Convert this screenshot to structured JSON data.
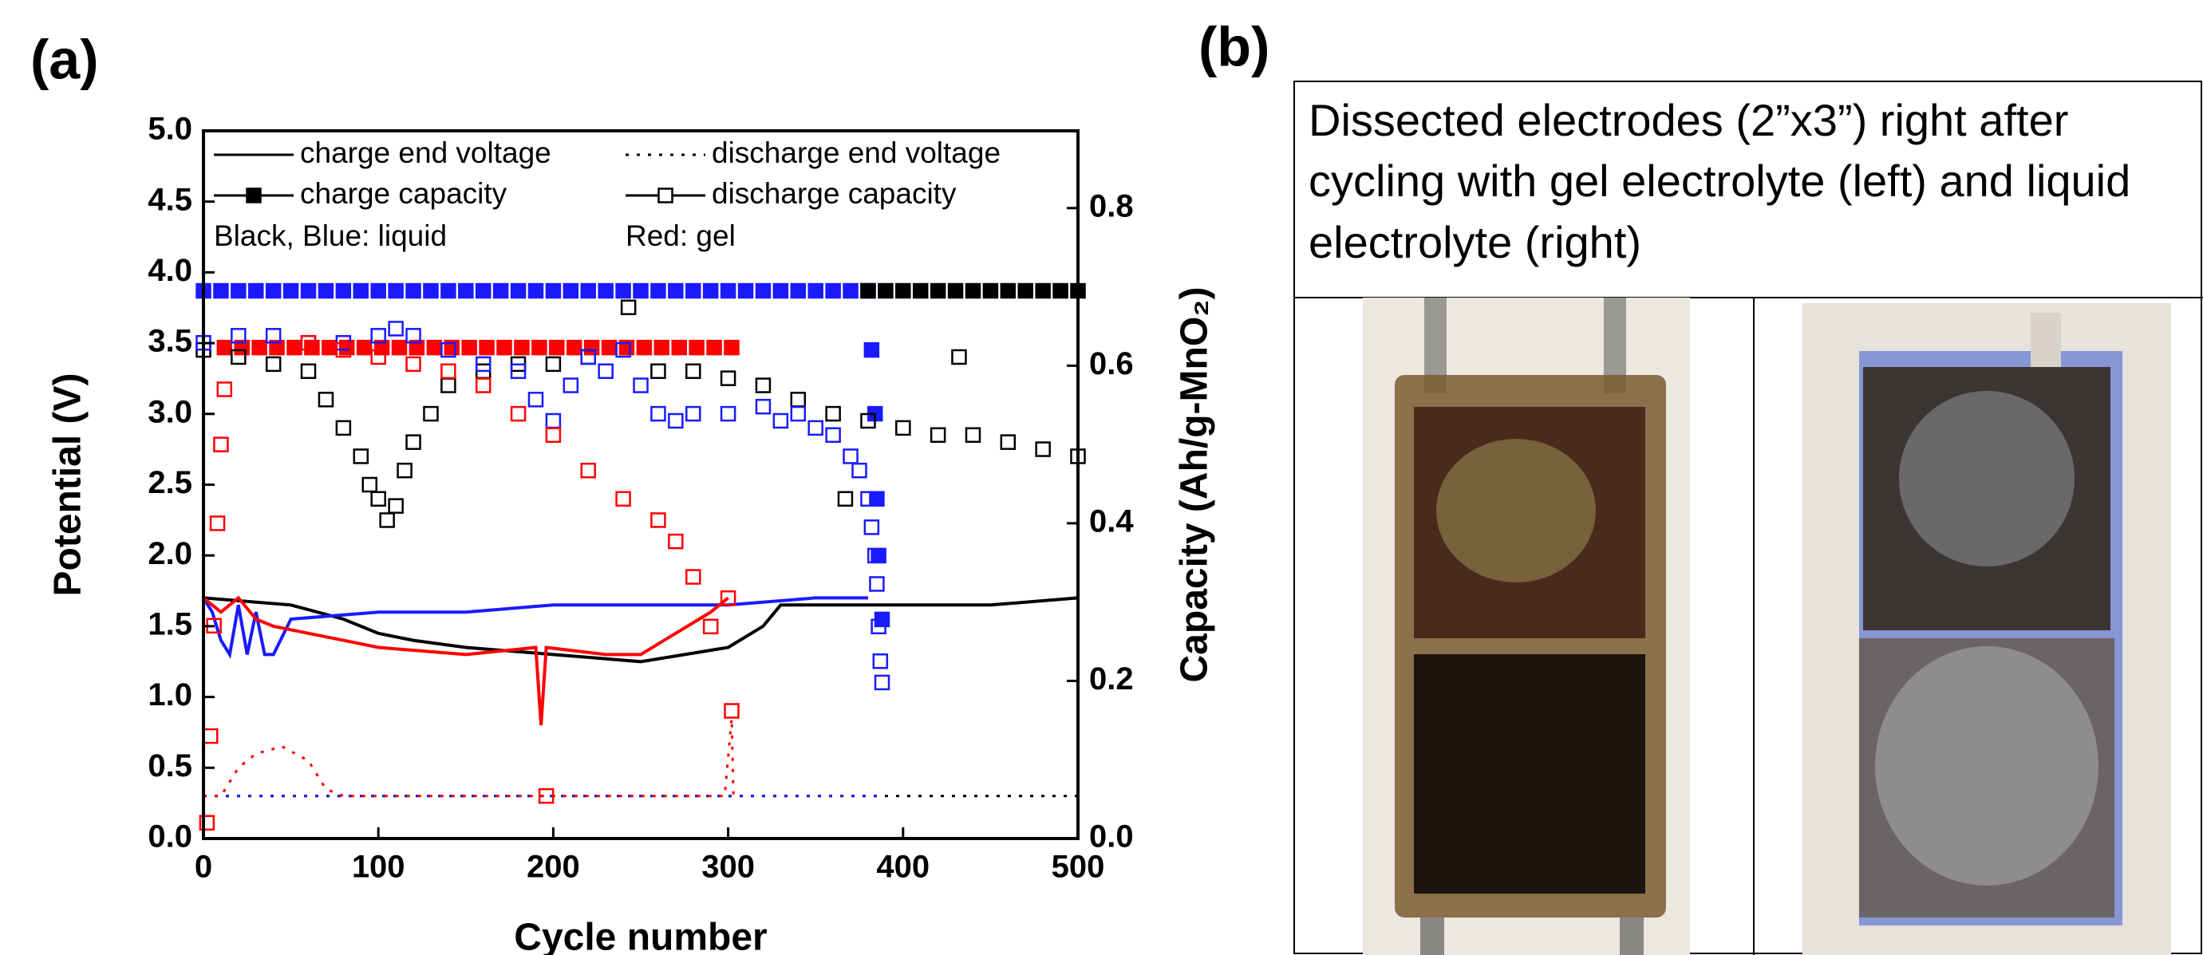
{
  "chart_data": {
    "type": "line",
    "panel_label": "(a)",
    "xlabel": "Cycle number",
    "ylabel": "Potential (V)",
    "y2label": "Capacity (Ah/g-MnO₂)",
    "xlim": [
      0,
      500
    ],
    "xticks": [
      0,
      100,
      200,
      300,
      400,
      500
    ],
    "ylim": [
      0,
      5
    ],
    "yticks": [
      {
        "value": 0,
        "label": "0.0"
      },
      0.5,
      {
        "value": 1,
        "label": "1.0"
      },
      1.5,
      {
        "value": 2,
        "label": "2.0"
      },
      2.5,
      {
        "value": 3,
        "label": "3.0"
      },
      3.5,
      {
        "value": 4,
        "label": "4.0"
      },
      4.5,
      {
        "value": 5,
        "label": "5.0"
      }
    ],
    "y2lim": [
      0,
      0.898
    ],
    "y2ticks": [
      {
        "value": 0,
        "label": "0.0"
      },
      0.2,
      0.4,
      0.6,
      0.8
    ],
    "legend": [
      {
        "label": "charge end voltage",
        "style": "solid"
      },
      {
        "label": "discharge end voltage",
        "style": "dotted"
      },
      {
        "label": "charge capacity",
        "style": "filled-square"
      },
      {
        "label": "discharge capacity",
        "style": "open-square"
      }
    ],
    "annotations": [
      "Black, Blue: liquid",
      "Red: gel"
    ],
    "series": [
      {
        "color": "#000000",
        "style": "solid",
        "x": [
          0,
          50,
          80,
          100,
          120,
          150,
          200,
          250,
          300,
          320,
          330,
          360,
          400,
          450,
          500
        ],
        "values": [
          1.7,
          1.65,
          1.55,
          1.45,
          1.4,
          1.35,
          1.3,
          1.25,
          1.35,
          1.5,
          1.65,
          1.65,
          1.65,
          1.65,
          1.7
        ]
      },
      {
        "color": "#1a1aff",
        "style": "solid",
        "x": [
          0,
          5,
          10,
          15,
          20,
          25,
          30,
          35,
          40,
          50,
          100,
          150,
          200,
          250,
          300,
          350,
          380
        ],
        "values": [
          1.7,
          1.6,
          1.4,
          1.3,
          1.65,
          1.3,
          1.6,
          1.3,
          1.3,
          1.55,
          1.6,
          1.6,
          1.65,
          1.65,
          1.65,
          1.7,
          1.7
        ]
      },
      {
        "color": "#ff0000",
        "style": "solid",
        "x": [
          0,
          10,
          20,
          30,
          40,
          60,
          80,
          100,
          150,
          190,
          193,
          196,
          230,
          250,
          270,
          290,
          300
        ],
        "values": [
          1.7,
          1.6,
          1.7,
          1.55,
          1.5,
          1.45,
          1.4,
          1.35,
          1.3,
          1.35,
          0.8,
          1.35,
          1.3,
          1.3,
          1.45,
          1.6,
          1.7
        ]
      },
      {
        "color": "#000000",
        "style": "dotted",
        "x": [
          0,
          500
        ],
        "values": [
          0.3,
          0.3
        ]
      },
      {
        "color": "#1a1aff",
        "style": "dotted",
        "x": [
          0,
          385
        ],
        "values": [
          0.3,
          0.3
        ]
      },
      {
        "color": "#ff0000",
        "style": "dotted",
        "x": [
          0,
          10,
          20,
          30,
          45,
          60,
          70,
          80,
          298,
          302,
          303
        ],
        "values": [
          0.3,
          0.3,
          0.5,
          0.6,
          0.65,
          0.55,
          0.35,
          0.3,
          0.3,
          0.85,
          0.3
        ]
      },
      {
        "color": "#1a1aff",
        "style": "filled-square",
        "axis": "y2",
        "x": [
          0,
          10,
          20,
          30,
          40,
          50,
          60,
          70,
          80,
          90,
          100,
          110,
          120,
          130,
          140,
          150,
          160,
          170,
          180,
          190,
          200,
          210,
          220,
          230,
          240,
          250,
          260,
          270,
          280,
          290,
          300,
          310,
          320,
          330,
          340,
          350,
          360,
          370,
          380,
          382,
          384,
          385,
          386,
          388
        ],
        "values": [
          0.695,
          0.695,
          0.695,
          0.695,
          0.695,
          0.695,
          0.695,
          0.695,
          0.695,
          0.695,
          0.695,
          0.695,
          0.695,
          0.695,
          0.695,
          0.695,
          0.695,
          0.695,
          0.695,
          0.695,
          0.695,
          0.695,
          0.695,
          0.695,
          0.695,
          0.695,
          0.695,
          0.695,
          0.695,
          0.695,
          0.695,
          0.695,
          0.695,
          0.695,
          0.695,
          0.695,
          0.695,
          0.695,
          0.695,
          0.62,
          0.539,
          0.431,
          0.359,
          0.278
        ]
      },
      {
        "color": "#000000",
        "style": "filled-square",
        "axis": "y2",
        "x": [
          380,
          390,
          400,
          410,
          420,
          430,
          440,
          450,
          460,
          470,
          480,
          490,
          500
        ],
        "values": [
          0.695,
          0.695,
          0.695,
          0.695,
          0.695,
          0.695,
          0.695,
          0.695,
          0.695,
          0.695,
          0.695,
          0.695,
          0.695
        ]
      },
      {
        "color": "#ff0000",
        "style": "filled-square",
        "axis": "y2",
        "x": [
          12,
          22,
          32,
          42,
          52,
          62,
          72,
          82,
          92,
          102,
          112,
          122,
          132,
          142,
          152,
          162,
          172,
          182,
          192,
          202,
          212,
          222,
          232,
          242,
          252,
          262,
          272,
          282,
          292,
          302
        ],
        "values": [
          0.623,
          0.623,
          0.623,
          0.623,
          0.623,
          0.623,
          0.623,
          0.623,
          0.623,
          0.623,
          0.623,
          0.623,
          0.623,
          0.623,
          0.623,
          0.623,
          0.623,
          0.623,
          0.623,
          0.623,
          0.623,
          0.623,
          0.623,
          0.623,
          0.623,
          0.623,
          0.623,
          0.623,
          0.623,
          0.623
        ]
      },
      {
        "color": "#000000",
        "style": "open-square",
        "axis": "y2",
        "x": [
          0,
          20,
          40,
          60,
          70,
          80,
          90,
          95,
          100,
          105,
          110,
          115,
          120,
          130,
          140,
          160,
          180,
          200,
          220,
          243,
          260,
          280,
          300,
          320,
          340,
          360,
          367,
          380,
          400,
          420,
          432,
          440,
          460,
          480,
          500
        ],
        "values": [
          0.62,
          0.611,
          0.602,
          0.593,
          0.557,
          0.521,
          0.485,
          0.449,
          0.431,
          0.404,
          0.422,
          0.467,
          0.503,
          0.539,
          0.575,
          0.593,
          0.602,
          0.602,
          0.611,
          0.674,
          0.593,
          0.593,
          0.584,
          0.575,
          0.557,
          0.539,
          0.431,
          0.53,
          0.521,
          0.512,
          0.611,
          0.512,
          0.503,
          0.494,
          0.485
        ]
      },
      {
        "color": "#1a1aff",
        "style": "open-square",
        "axis": "y2",
        "x": [
          0,
          20,
          40,
          60,
          80,
          100,
          110,
          120,
          140,
          160,
          180,
          190,
          200,
          210,
          220,
          230,
          240,
          250,
          260,
          270,
          280,
          300,
          320,
          330,
          340,
          350,
          360,
          370,
          375,
          380,
          382,
          384,
          385,
          386,
          387,
          388
        ],
        "values": [
          0.629,
          0.638,
          0.638,
          0.629,
          0.629,
          0.638,
          0.647,
          0.638,
          0.62,
          0.602,
          0.593,
          0.557,
          0.53,
          0.575,
          0.611,
          0.593,
          0.62,
          0.575,
          0.539,
          0.53,
          0.539,
          0.539,
          0.548,
          0.53,
          0.539,
          0.521,
          0.512,
          0.485,
          0.467,
          0.431,
          0.395,
          0.359,
          0.323,
          0.269,
          0.225,
          0.198
        ]
      },
      {
        "color": "#ff0000",
        "style": "open-square",
        "axis": "y2",
        "x": [
          2,
          4,
          6,
          8,
          10,
          12,
          60,
          80,
          100,
          120,
          140,
          160,
          180,
          196,
          200,
          220,
          240,
          260,
          270,
          280,
          290,
          300,
          302
        ],
        "values": [
          0.02,
          0.13,
          0.27,
          0.4,
          0.5,
          0.57,
          0.629,
          0.62,
          0.611,
          0.602,
          0.593,
          0.575,
          0.539,
          0.054,
          0.512,
          0.467,
          0.431,
          0.404,
          0.377,
          0.332,
          0.269,
          0.305,
          0.162
        ]
      }
    ]
  },
  "panel_b": {
    "label": "(b)",
    "description_lines": [
      "Dissected electrodes (2”x3”) right after",
      "cycling with gel electrolyte (left) and liquid",
      "electrolyte (right)"
    ]
  }
}
